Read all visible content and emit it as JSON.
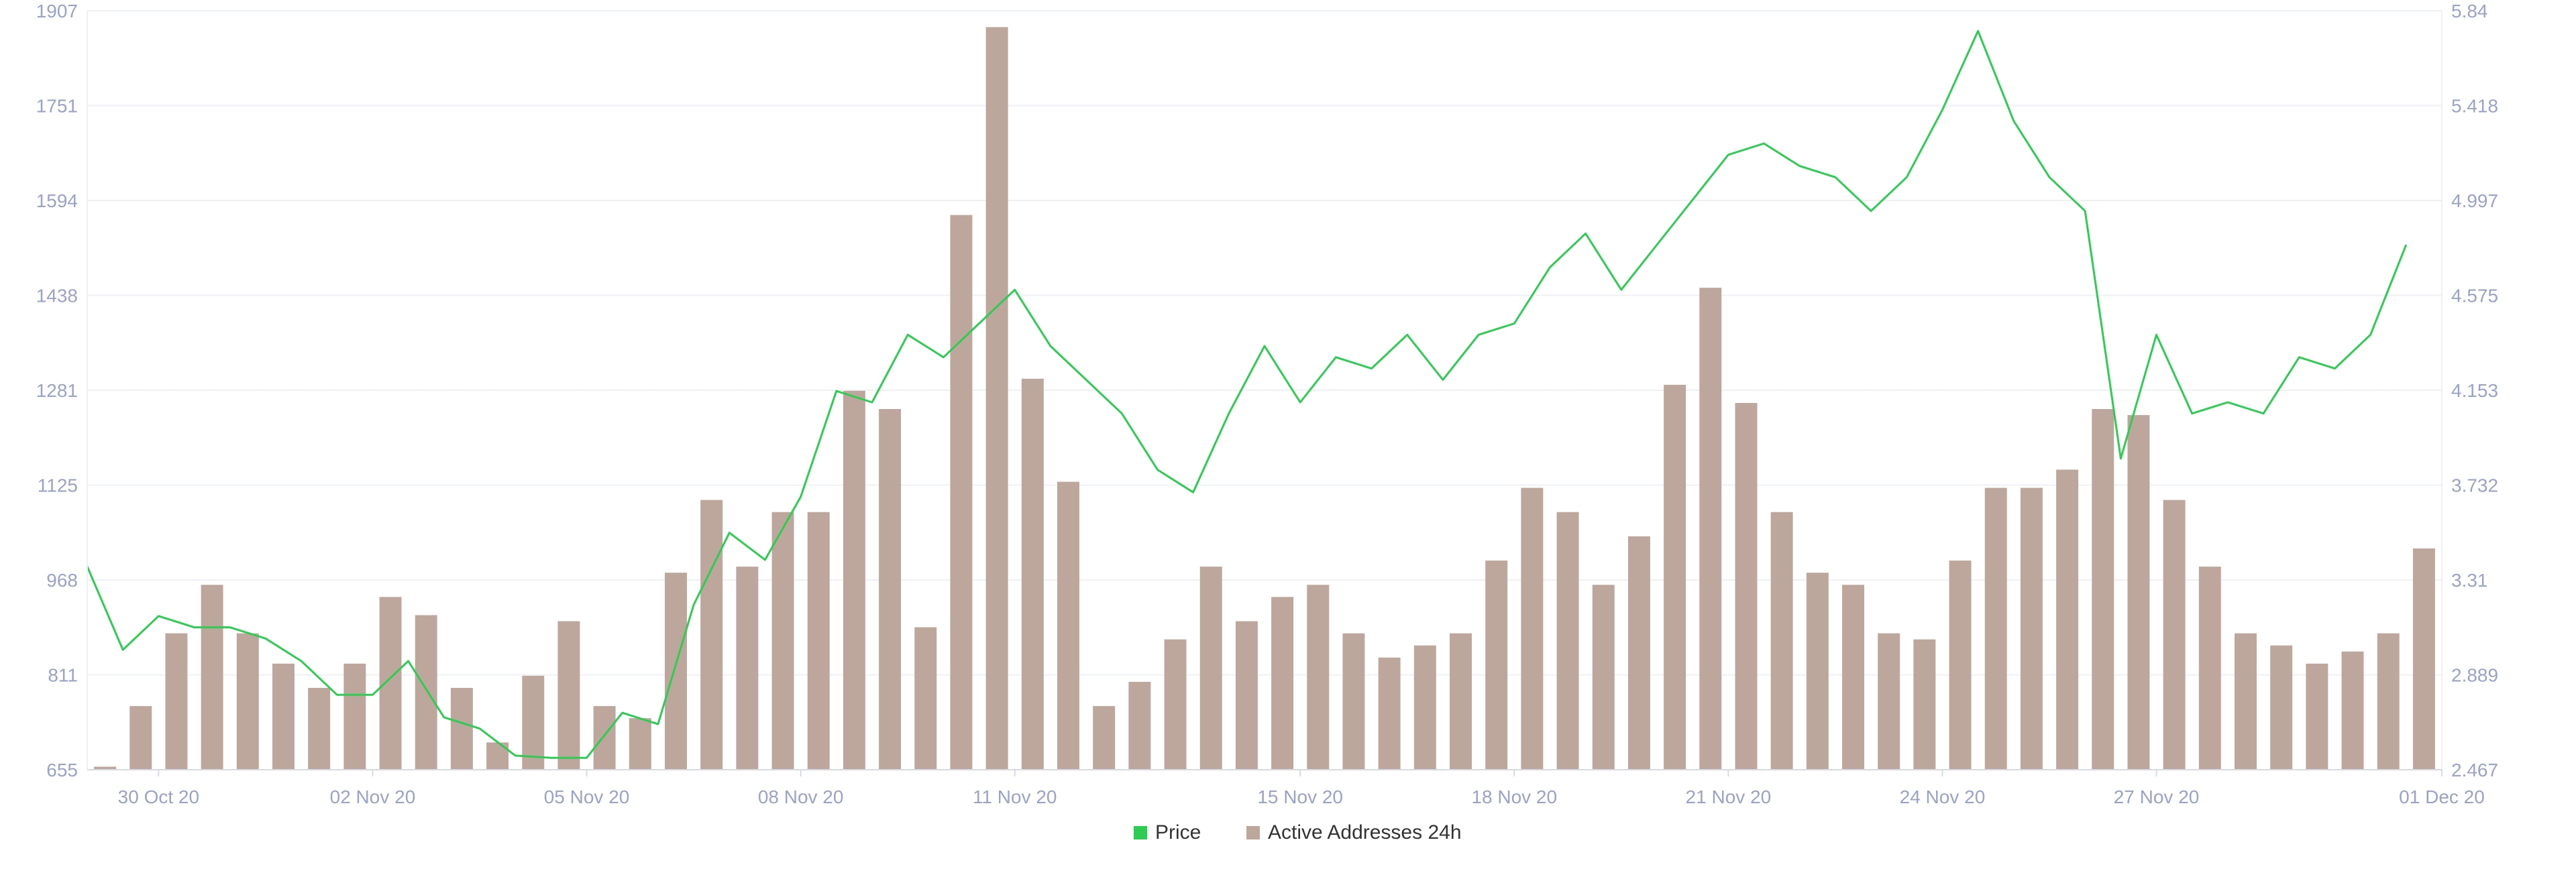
{
  "chart_data": {
    "type": "bar+line",
    "title": "",
    "legend_placement": "bottom-center",
    "grid": "horizontal",
    "colors": {
      "price": "#2ecc52",
      "active_addresses": "#bda79d",
      "axis_text": "#9aa3c7",
      "grid": "#eef0f5"
    },
    "x_axis": {
      "type": "date",
      "range": [
        "2020-10-29",
        "2020-12-01"
      ],
      "tick_labels": [
        "30 Oct 20",
        "02 Nov 20",
        "05 Nov 20",
        "08 Nov 20",
        "11 Nov 20",
        "15 Nov 20",
        "18 Nov 20",
        "21 Nov 20",
        "24 Nov 20",
        "27 Nov 20",
        "01 Dec 20"
      ],
      "tick_dates": [
        "2020-10-30",
        "2020-11-02",
        "2020-11-05",
        "2020-11-08",
        "2020-11-11",
        "2020-11-15",
        "2020-11-18",
        "2020-11-21",
        "2020-11-24",
        "2020-11-27",
        "2020-12-01"
      ]
    },
    "y_left": {
      "label": "",
      "range": [
        655,
        1907
      ],
      "tick_labels": [
        "655",
        "811",
        "968",
        "1125",
        "1281",
        "1438",
        "1594",
        "1751",
        "1907"
      ]
    },
    "y_right": {
      "label": "",
      "range": [
        2.467,
        5.84
      ],
      "tick_labels": [
        "2.467",
        "2.889",
        "3.31",
        "3.732",
        "4.153",
        "4.575",
        "4.997",
        "5.418",
        "5.84"
      ]
    },
    "series": [
      {
        "name": "Active Addresses 24h",
        "kind": "bar",
        "axis": "left",
        "points": [
          [
            "2020-10-29T00:00",
            660
          ],
          [
            "2020-10-29T12:00",
            760
          ],
          [
            "2020-10-30T00:00",
            880
          ],
          [
            "2020-10-30T12:00",
            960
          ],
          [
            "2020-10-31T00:00",
            880
          ],
          [
            "2020-10-31T12:00",
            830
          ],
          [
            "2020-11-01T00:00",
            790
          ],
          [
            "2020-11-01T12:00",
            830
          ],
          [
            "2020-11-02T00:00",
            940
          ],
          [
            "2020-11-02T12:00",
            910
          ],
          [
            "2020-11-03T00:00",
            790
          ],
          [
            "2020-11-03T12:00",
            700
          ],
          [
            "2020-11-04T00:00",
            810
          ],
          [
            "2020-11-04T12:00",
            900
          ],
          [
            "2020-11-05T00:00",
            760
          ],
          [
            "2020-11-05T12:00",
            740
          ],
          [
            "2020-11-06T00:00",
            980
          ],
          [
            "2020-11-06T12:00",
            1100
          ],
          [
            "2020-11-07T00:00",
            990
          ],
          [
            "2020-11-07T12:00",
            1080
          ],
          [
            "2020-11-08T00:00",
            1080
          ],
          [
            "2020-11-08T12:00",
            1280
          ],
          [
            "2020-11-09T00:00",
            1250
          ],
          [
            "2020-11-09T12:00",
            890
          ],
          [
            "2020-11-10T00:00",
            1570
          ],
          [
            "2020-11-10T12:00",
            1880
          ],
          [
            "2020-11-11T00:00",
            1300
          ],
          [
            "2020-11-11T12:00",
            1130
          ],
          [
            "2020-11-12T00:00",
            760
          ],
          [
            "2020-11-12T12:00",
            800
          ],
          [
            "2020-11-13T00:00",
            870
          ],
          [
            "2020-11-13T12:00",
            990
          ],
          [
            "2020-11-14T00:00",
            900
          ],
          [
            "2020-11-14T12:00",
            940
          ],
          [
            "2020-11-15T00:00",
            960
          ],
          [
            "2020-11-15T12:00",
            880
          ],
          [
            "2020-11-16T00:00",
            840
          ],
          [
            "2020-11-16T12:00",
            860
          ],
          [
            "2020-11-17T00:00",
            880
          ],
          [
            "2020-11-17T12:00",
            1000
          ],
          [
            "2020-11-18T00:00",
            1120
          ],
          [
            "2020-11-18T12:00",
            1080
          ],
          [
            "2020-11-19T00:00",
            960
          ],
          [
            "2020-11-19T12:00",
            1040
          ],
          [
            "2020-11-20T00:00",
            1290
          ],
          [
            "2020-11-20T12:00",
            1450
          ],
          [
            "2020-11-21T00:00",
            1260
          ],
          [
            "2020-11-21T12:00",
            1080
          ],
          [
            "2020-11-22T00:00",
            980
          ],
          [
            "2020-11-22T12:00",
            960
          ],
          [
            "2020-11-23T00:00",
            880
          ],
          [
            "2020-11-23T12:00",
            870
          ],
          [
            "2020-11-24T00:00",
            1000
          ],
          [
            "2020-11-24T12:00",
            1120
          ],
          [
            "2020-11-25T00:00",
            1120
          ],
          [
            "2020-11-25T12:00",
            1150
          ],
          [
            "2020-11-26T00:00",
            1250
          ],
          [
            "2020-11-26T12:00",
            1240
          ],
          [
            "2020-11-27T00:00",
            1100
          ],
          [
            "2020-11-27T12:00",
            990
          ],
          [
            "2020-11-28T00:00",
            880
          ],
          [
            "2020-11-28T12:00",
            860
          ],
          [
            "2020-11-29T00:00",
            830
          ],
          [
            "2020-11-29T12:00",
            850
          ],
          [
            "2020-11-30T00:00",
            880
          ],
          [
            "2020-11-30T12:00",
            1020
          ]
        ]
      },
      {
        "name": "Price",
        "kind": "line",
        "axis": "right",
        "points": [
          [
            "2020-10-29T00:00",
            3.37
          ],
          [
            "2020-10-29T12:00",
            3.0
          ],
          [
            "2020-10-30T00:00",
            3.15
          ],
          [
            "2020-10-30T12:00",
            3.1
          ],
          [
            "2020-10-31T00:00",
            3.1
          ],
          [
            "2020-10-31T12:00",
            3.05
          ],
          [
            "2020-11-01T00:00",
            2.95
          ],
          [
            "2020-11-01T12:00",
            2.8
          ],
          [
            "2020-11-02T00:00",
            2.8
          ],
          [
            "2020-11-02T12:00",
            2.95
          ],
          [
            "2020-11-03T00:00",
            2.7
          ],
          [
            "2020-11-03T12:00",
            2.65
          ],
          [
            "2020-11-04T00:00",
            2.53
          ],
          [
            "2020-11-04T12:00",
            2.52
          ],
          [
            "2020-11-05T00:00",
            2.52
          ],
          [
            "2020-11-05T12:00",
            2.72
          ],
          [
            "2020-11-06T00:00",
            2.67
          ],
          [
            "2020-11-06T12:00",
            3.2
          ],
          [
            "2020-11-07T00:00",
            3.52
          ],
          [
            "2020-11-07T12:00",
            3.4
          ],
          [
            "2020-11-08T00:00",
            3.68
          ],
          [
            "2020-11-08T12:00",
            4.15
          ],
          [
            "2020-11-09T00:00",
            4.1
          ],
          [
            "2020-11-09T12:00",
            4.4
          ],
          [
            "2020-11-10T00:00",
            4.3
          ],
          [
            "2020-11-10T12:00",
            4.45
          ],
          [
            "2020-11-11T00:00",
            4.6
          ],
          [
            "2020-11-11T12:00",
            4.35
          ],
          [
            "2020-11-12T00:00",
            4.2
          ],
          [
            "2020-11-12T12:00",
            4.05
          ],
          [
            "2020-11-13T00:00",
            3.8
          ],
          [
            "2020-11-13T12:00",
            3.7
          ],
          [
            "2020-11-14T00:00",
            4.05
          ],
          [
            "2020-11-14T12:00",
            4.35
          ],
          [
            "2020-11-15T00:00",
            4.1
          ],
          [
            "2020-11-15T12:00",
            4.3
          ],
          [
            "2020-11-16T00:00",
            4.25
          ],
          [
            "2020-11-16T12:00",
            4.4
          ],
          [
            "2020-11-17T00:00",
            4.2
          ],
          [
            "2020-11-17T12:00",
            4.4
          ],
          [
            "2020-11-18T00:00",
            4.45
          ],
          [
            "2020-11-18T12:00",
            4.7
          ],
          [
            "2020-11-19T00:00",
            4.85
          ],
          [
            "2020-11-19T12:00",
            4.6
          ],
          [
            "2020-11-20T00:00",
            4.8
          ],
          [
            "2020-11-20T12:00",
            5.0
          ],
          [
            "2020-11-21T00:00",
            5.2
          ],
          [
            "2020-11-21T12:00",
            5.25
          ],
          [
            "2020-11-22T00:00",
            5.15
          ],
          [
            "2020-11-22T12:00",
            5.1
          ],
          [
            "2020-11-23T00:00",
            4.95
          ],
          [
            "2020-11-23T12:00",
            5.1
          ],
          [
            "2020-11-24T00:00",
            5.4
          ],
          [
            "2020-11-24T12:00",
            5.75
          ],
          [
            "2020-11-25T00:00",
            5.35
          ],
          [
            "2020-11-25T12:00",
            5.1
          ],
          [
            "2020-11-26T00:00",
            4.95
          ],
          [
            "2020-11-26T12:00",
            3.85
          ],
          [
            "2020-11-27T00:00",
            4.4
          ],
          [
            "2020-11-27T12:00",
            4.05
          ],
          [
            "2020-11-28T00:00",
            4.1
          ],
          [
            "2020-11-28T12:00",
            4.05
          ],
          [
            "2020-11-29T00:00",
            4.3
          ],
          [
            "2020-11-29T12:00",
            4.25
          ],
          [
            "2020-11-30T00:00",
            4.4
          ],
          [
            "2020-11-30T12:00",
            4.8
          ]
        ]
      }
    ]
  }
}
